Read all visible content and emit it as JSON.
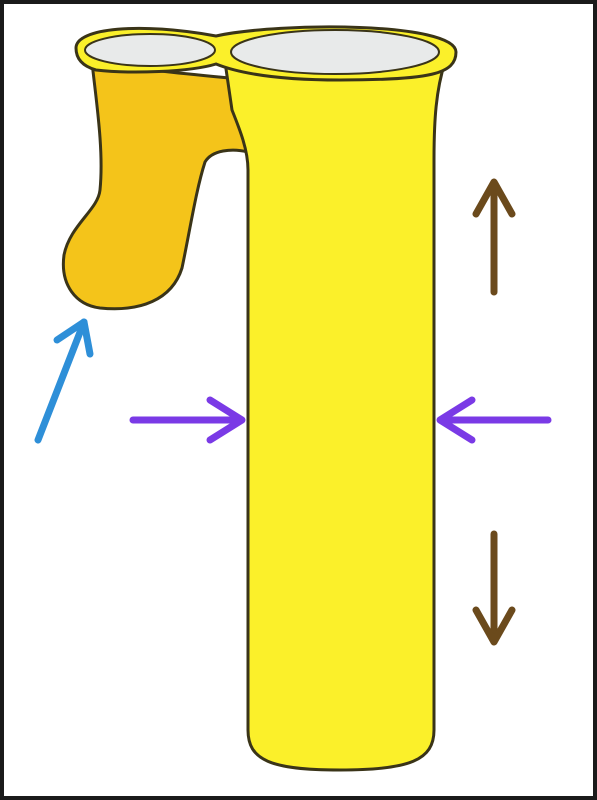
{
  "figure": {
    "frame_color": "#1a1a1a",
    "background_color": "#ffffff"
  },
  "tube": {
    "main_fill": "#fbf02a",
    "pouch_fill": "#f4c41a",
    "outline_color": "#3a3418",
    "lumen_fill": "#e8eaea"
  },
  "arrows": [
    {
      "name": "pouch-pointer-arrow",
      "direction": "up-right",
      "color": "#2e8fd8"
    },
    {
      "name": "squeeze-left-arrow",
      "direction": "right",
      "color": "#7a3ae6"
    },
    {
      "name": "squeeze-right-arrow",
      "direction": "left",
      "color": "#7a3ae6"
    },
    {
      "name": "stretch-up-arrow",
      "direction": "up",
      "color": "#6b4a1c"
    },
    {
      "name": "stretch-down-arrow",
      "direction": "down",
      "color": "#6b4a1c"
    }
  ]
}
